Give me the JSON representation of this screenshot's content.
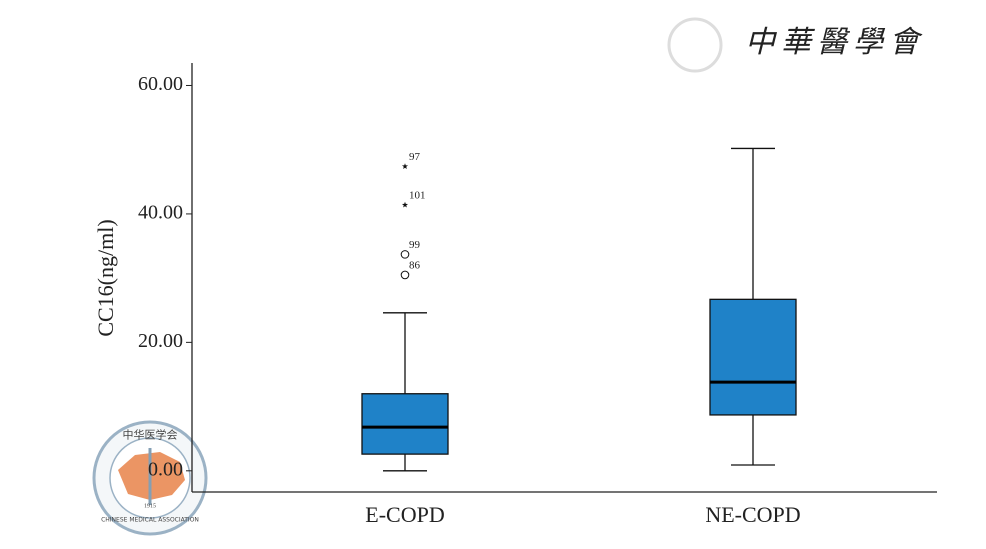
{
  "chart_data": {
    "type": "box",
    "y_label": "CC16(ng/ml)",
    "categories": [
      "E-COPD",
      "NE-COPD"
    ],
    "color": "#1f82c8",
    "boxes": [
      {
        "min": 0,
        "q1": 2.6,
        "median": 6.8,
        "q3": 12.0,
        "max": 24.6,
        "outliers": [
          {
            "value": 47.4,
            "label": "97",
            "marker": "star"
          },
          {
            "value": 41.4,
            "label": "101",
            "marker": "star"
          },
          {
            "value": 33.7,
            "label": "99",
            "marker": "circle"
          },
          {
            "value": 30.5,
            "label": "86",
            "marker": "circle"
          }
        ]
      },
      {
        "min": 0.9,
        "q1": 8.7,
        "median": 13.8,
        "q3": 26.7,
        "max": 50.2,
        "outliers": []
      }
    ],
    "ylim": [
      -3.3,
      63.5
    ],
    "yticks": [
      {
        "value": 0,
        "label": "0.00"
      },
      {
        "value": 20,
        "label": "20.00"
      },
      {
        "value": 40,
        "label": "40.00"
      },
      {
        "value": 60,
        "label": "60.00"
      }
    ]
  },
  "watermark": {
    "text": "中華醫學會",
    "logo_text": "中华医学会",
    "logo_subtext": "CHINESE MEDICAL ASSOCIATION",
    "logo_year": "1915"
  }
}
